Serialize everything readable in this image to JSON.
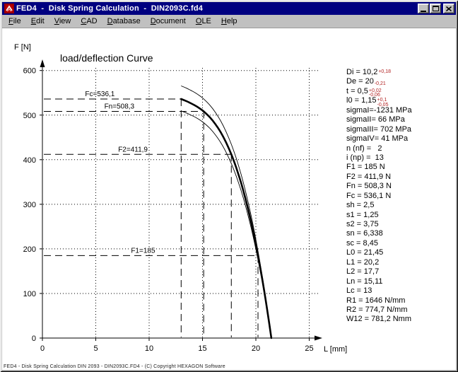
{
  "window": {
    "title": "FED4  -  Disk Spring Calculation  -  DIN2093C.fd4"
  },
  "colors": {
    "titlebar": "#000080",
    "titlebar_text": "#ffffff",
    "chrome": "#c0c0c0",
    "tolerance_text": "#b22222",
    "ink": "#000000"
  },
  "menu": {
    "items": [
      {
        "label": "File"
      },
      {
        "label": "Edit"
      },
      {
        "label": "View"
      },
      {
        "label": "CAD"
      },
      {
        "label": "Database"
      },
      {
        "label": "Document"
      },
      {
        "label": "OLE"
      },
      {
        "label": "Help"
      }
    ]
  },
  "chart_data": {
    "type": "line",
    "title": "load/deflection Curve",
    "xlabel": "L [mm]",
    "ylabel": "F [N]",
    "xlim": [
      0,
      26.5
    ],
    "ylim": [
      0,
      600
    ],
    "xticks": [
      0,
      5,
      10,
      15,
      20,
      25
    ],
    "yticks": [
      0,
      100,
      200,
      300,
      400,
      500,
      600
    ],
    "grid": "dotted",
    "legend": "none",
    "series": [
      {
        "name": "nominal-load-deflection",
        "style": "thick",
        "scale": 1.0,
        "points": [
          [
            21.45,
            0
          ],
          [
            21.2,
            41.5
          ],
          [
            20.9,
            88.2
          ],
          [
            20.6,
            131.8
          ],
          [
            20.2,
            185
          ],
          [
            19.8,
            233.2
          ],
          [
            19.4,
            276.4
          ],
          [
            19.0,
            314.9
          ],
          [
            18.6,
            349.2
          ],
          [
            18.15,
            382.9
          ],
          [
            17.7,
            411.9
          ],
          [
            17.2,
            439.2
          ],
          [
            16.7,
            461.7
          ],
          [
            16.2,
            480.0
          ],
          [
            15.7,
            494.8
          ],
          [
            15.11,
            508.3
          ],
          [
            14.7,
            515.7
          ],
          [
            14.3,
            521.7
          ],
          [
            13.9,
            526.6
          ],
          [
            13.5,
            531.2
          ],
          [
            13.25,
            533.7
          ],
          [
            13.0,
            536.1
          ]
        ]
      },
      {
        "name": "tolerance-upper",
        "style": "thin",
        "scale": 1.055
      },
      {
        "name": "tolerance-lower",
        "style": "thin",
        "scale": 0.95
      }
    ],
    "levels": [
      {
        "label": "Fc=536,1",
        "F": 536.1,
        "L": 13.0,
        "label_L": 4.0
      },
      {
        "label": "Fn=508,3",
        "F": 508.3,
        "L": 15.11,
        "label_L": 5.8
      },
      {
        "label": "F2=411,9",
        "F": 411.9,
        "L": 17.7,
        "label_L": 7.1
      },
      {
        "label": "F1=185",
        "F": 185.0,
        "L": 20.2,
        "label_L": 8.3
      }
    ]
  },
  "results": {
    "lines": [
      {
        "main": "Di = 10,2",
        "sup": "+0,18",
        "sub": ""
      },
      {
        "main": "De = 20",
        "sup": "",
        "sub": "-0,21"
      },
      {
        "main": "t = 0,5",
        "sup": "+0,02",
        "sub": "-0,06"
      },
      {
        "main": "l0 = 1,15",
        "sup": "+0,1",
        "sub": "-0,05"
      },
      {
        "main": "sigmaI=-1231 MPa"
      },
      {
        "main": "sigmaII= 66 MPa"
      },
      {
        "main": "sigmaIII= 702 MPa"
      },
      {
        "main": "sigmaIV= 41 MPa"
      },
      {
        "main": "n (nf) =   2"
      },
      {
        "main": "i (np) =  13"
      },
      {
        "main": "F1 = 185 N"
      },
      {
        "main": "F2 = 411,9 N"
      },
      {
        "main": "Fn = 508,3 N"
      },
      {
        "main": "Fc = 536,1 N"
      },
      {
        "main": "sh = 2,5"
      },
      {
        "main": "s1 = 1,25"
      },
      {
        "main": "s2 = 3,75"
      },
      {
        "main": "sn = 6,338"
      },
      {
        "main": "sc = 8,45"
      },
      {
        "main": "L0 = 21,45"
      },
      {
        "main": "L1 = 20,2"
      },
      {
        "main": "L2 = 17,7"
      },
      {
        "main": "Ln = 15,11"
      },
      {
        "main": "Lc = 13"
      },
      {
        "main": "R1 = 1646 N/mm"
      },
      {
        "main": "R2 = 774,7 N/mm"
      },
      {
        "main": "W12 = 781,2 Nmm"
      }
    ]
  },
  "status": {
    "text": "FED4 - Disk Spring Calculation DIN 2093 - DIN2093C.FD4 - (C) Copyright HEXAGON Software"
  }
}
